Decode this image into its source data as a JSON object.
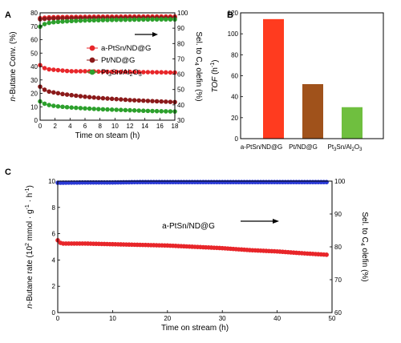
{
  "chart_data": [
    {
      "panel": "A",
      "type": "scatter",
      "xlabel": "Time on steam (h)",
      "ylabel": "n-Butane Conv. (%)",
      "y2label": "Sel. to C4 olefin (%)",
      "xlim": [
        0,
        18
      ],
      "ylim": [
        0,
        80
      ],
      "y2lim": [
        30,
        100
      ],
      "xticks": [
        0,
        2,
        4,
        6,
        8,
        10,
        12,
        14,
        16,
        18
      ],
      "yticks": [
        0,
        10,
        20,
        30,
        40,
        50,
        60,
        70,
        80
      ],
      "y2ticks": [
        30,
        40,
        50,
        60,
        70,
        80,
        90,
        100
      ],
      "legend_position": "center-right",
      "arrow_direction": "right",
      "series": [
        {
          "name": "a-PtSn/ND@G",
          "axis": "left",
          "color": "#e8262a",
          "x": [
            0,
            0.5,
            1,
            2,
            3,
            4,
            6,
            8,
            10,
            12,
            14,
            16,
            18
          ],
          "values": [
            41,
            39,
            38,
            37.5,
            37,
            36.5,
            36.5,
            36.2,
            36,
            36,
            35.8,
            35.7,
            35.5
          ]
        },
        {
          "name": "Pt/ND@G",
          "axis": "left",
          "color": "#8b1a1a",
          "x": [
            0,
            0.5,
            1,
            2,
            3,
            4,
            6,
            8,
            10,
            12,
            14,
            16,
            18
          ],
          "values": [
            25,
            23,
            21.5,
            20.5,
            19.5,
            18.8,
            17.5,
            16.5,
            15.8,
            15,
            14.5,
            14,
            13.5
          ]
        },
        {
          "name": "Pt3Sn/Al2O3",
          "axis": "left",
          "color": "#2ca02c",
          "x": [
            0,
            0.5,
            1,
            2,
            3,
            4,
            6,
            8,
            10,
            12,
            14,
            16,
            18
          ],
          "values": [
            14,
            12.5,
            11.5,
            10.5,
            10,
            9.5,
            8.8,
            8.2,
            7.8,
            7.4,
            7,
            6.7,
            6.5
          ]
        },
        {
          "name": "a-PtSn/ND@G",
          "axis": "right",
          "color": "#e8262a",
          "x": [
            0,
            0.5,
            1,
            2,
            4,
            6,
            8,
            10,
            12,
            14,
            16,
            18
          ],
          "values": [
            96.5,
            96.8,
            97,
            97.2,
            97.3,
            97.4,
            97.5,
            97.5,
            97.6,
            97.6,
            97.6,
            97.6
          ]
        },
        {
          "name": "Pt/ND@G",
          "axis": "right",
          "color": "#8b1a1a",
          "x": [
            0,
            0.5,
            1,
            2,
            4,
            6,
            8,
            10,
            12,
            14,
            16,
            18
          ],
          "values": [
            95.8,
            96,
            96.2,
            96.4,
            96.5,
            96.6,
            96.7,
            96.7,
            96.8,
            96.8,
            96.8,
            96.8
          ]
        },
        {
          "name": "Pt3Sn/Al2O3",
          "axis": "right",
          "color": "#2ca02c",
          "x": [
            0,
            0.5,
            1,
            2,
            3,
            4,
            6,
            8,
            10,
            12,
            14,
            16,
            18
          ],
          "values": [
            91,
            92.5,
            93.3,
            94,
            94.3,
            94.6,
            95,
            95.2,
            95.4,
            95.5,
            95.6,
            95.7,
            95.7
          ]
        }
      ]
    },
    {
      "panel": "B",
      "type": "bar",
      "ylabel": "TOF (h-1)",
      "ylim": [
        0,
        120
      ],
      "yticks": [
        0,
        20,
        40,
        60,
        80,
        100,
        120
      ],
      "categories": [
        "a-PtSn/ND@G",
        "Pt/ND@G",
        "Pt3Sn/Al2O3"
      ],
      "values": [
        114,
        52,
        30
      ],
      "colors": [
        "#ff3b1f",
        "#a0521b",
        "#6fbf3f"
      ]
    },
    {
      "panel": "C",
      "type": "scatter",
      "title": "a-PtSn/ND@G",
      "xlabel": "Time on stream (h)",
      "ylabel": "n-Butane rate (10^2 mmol·g-1·h-1)",
      "y2label": "Sel. to C4 olefin (%)",
      "xlim": [
        0,
        50
      ],
      "ylim": [
        0,
        10
      ],
      "y2lim": [
        60,
        100
      ],
      "xticks": [
        0,
        10,
        20,
        30,
        40,
        50
      ],
      "yticks": [
        0,
        2,
        4,
        6,
        8,
        10
      ],
      "y2ticks": [
        60,
        70,
        80,
        90,
        100
      ],
      "arrow_direction": "right",
      "series": [
        {
          "name": "rate",
          "axis": "left",
          "color": "#e8262a",
          "x": [
            0,
            0.5,
            1,
            2,
            5,
            10,
            15,
            20,
            25,
            30,
            35,
            40,
            45,
            49
          ],
          "values": [
            5.5,
            5.3,
            5.25,
            5.25,
            5.25,
            5.2,
            5.15,
            5.1,
            5.0,
            4.9,
            4.75,
            4.65,
            4.5,
            4.4
          ]
        },
        {
          "name": "selectivity",
          "axis": "right",
          "color": "#2b3ad6",
          "x": [
            0,
            5,
            10,
            15,
            20,
            25,
            30,
            35,
            40,
            45,
            49
          ],
          "values": [
            99.5,
            99.6,
            99.6,
            99.7,
            99.7,
            99.7,
            99.7,
            99.7,
            99.7,
            99.7,
            99.7
          ]
        }
      ]
    }
  ]
}
